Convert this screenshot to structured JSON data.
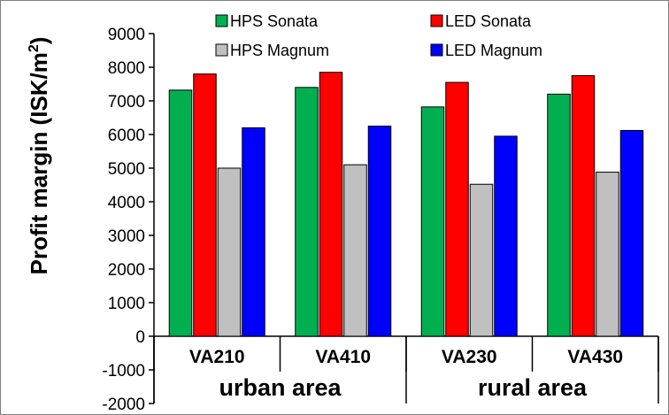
{
  "chart_data": {
    "type": "bar",
    "title": "",
    "ylabel": "Profit margin (ISK/m",
    "ylabel_sup": "2",
    "ylabel_suffix": ")",
    "xlabel": "",
    "ylim": [
      -2000,
      9000
    ],
    "yticks": [
      9000,
      8000,
      7000,
      6000,
      5000,
      4000,
      3000,
      2000,
      1000,
      0,
      -1000,
      -2000
    ],
    "ytick_labels": [
      "9000",
      "8000",
      "7000",
      "6000",
      "5000",
      "4000",
      "3000",
      "2000",
      "1000",
      "0",
      "-1000",
      "-2000"
    ],
    "categories": [
      "VA210",
      "VA410",
      "VA230",
      "VA430"
    ],
    "groups": [
      "urban area",
      "rural area"
    ],
    "series": [
      {
        "name": "HPS Sonata",
        "color": "#00b050",
        "values": [
          7320,
          7400,
          6820,
          7200
        ]
      },
      {
        "name": "LED Sonata",
        "color": "#ff0000",
        "values": [
          7800,
          7850,
          7550,
          7750
        ]
      },
      {
        "name": "HPS Magnum",
        "color": "#c0c0c0",
        "values": [
          5000,
          5100,
          4520,
          4880
        ]
      },
      {
        "name": "LED Magnum",
        "color": "#0000ff",
        "values": [
          6200,
          6250,
          5950,
          6120
        ]
      }
    ],
    "legend_position": "top"
  }
}
